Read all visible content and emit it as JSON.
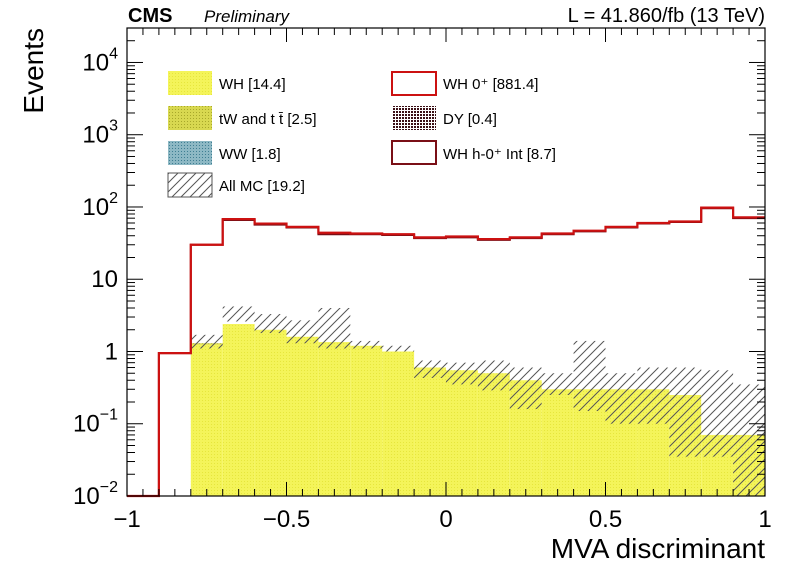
{
  "header": {
    "experiment": "CMS",
    "status": "Preliminary",
    "lumi": "L = 41.860/fb (13 TeV)"
  },
  "chart_data": {
    "type": "bar",
    "xlabel": "MVA discriminant",
    "ylabel": "Events",
    "xlim": [
      -1,
      1
    ],
    "ylim": [
      0.01,
      30000
    ],
    "yscale": "log",
    "x_ticks": [
      {
        "value": -1,
        "label": "−1"
      },
      {
        "value": -0.5,
        "label": "−0.5"
      },
      {
        "value": 0,
        "label": "0"
      },
      {
        "value": 0.5,
        "label": "0.5"
      },
      {
        "value": 1,
        "label": "1"
      }
    ],
    "y_ticks": [
      {
        "value": 0.01,
        "base": "10",
        "exp": "−2"
      },
      {
        "value": 0.1,
        "base": "10",
        "exp": "−1"
      },
      {
        "value": 1,
        "base": "1",
        "exp": ""
      },
      {
        "value": 10,
        "base": "10",
        "exp": ""
      },
      {
        "value": 100,
        "base": "10",
        "exp": "2"
      },
      {
        "value": 1000,
        "base": "10",
        "exp": "3"
      },
      {
        "value": 10000,
        "base": "10",
        "exp": "4"
      }
    ],
    "bin_edges": [
      -1.0,
      -0.9,
      -0.8,
      -0.7,
      -0.6,
      -0.5,
      -0.4,
      -0.3,
      -0.2,
      -0.1,
      0.0,
      0.1,
      0.2,
      0.3,
      0.4,
      0.5,
      0.6,
      0.7,
      0.8,
      0.9,
      1.0
    ],
    "series": [
      {
        "name": "WH [14.4]",
        "kind": "stack",
        "color": "#f4f45a",
        "values": [
          0,
          0,
          1.25,
          2.4,
          2.0,
          1.6,
          1.35,
          1.2,
          1.0,
          0.6,
          0.55,
          0.5,
          0.4,
          0.3,
          0.3,
          0.3,
          0.3,
          0.25,
          0.07,
          0.07
        ]
      },
      {
        "name": "tW and t t̄ [2.5]",
        "kind": "stack",
        "color": "#c9c93a",
        "values": [
          0,
          0,
          0.05,
          0,
          0,
          0,
          0,
          0,
          0,
          0,
          0,
          0,
          0,
          0,
          0,
          0,
          0,
          0,
          0,
          0
        ]
      },
      {
        "name": "WW [1.8]",
        "kind": "stack",
        "color": "#6aa3b4",
        "values": [
          0,
          0,
          0,
          0,
          0,
          0,
          0,
          0,
          0,
          0,
          0,
          0,
          0,
          0,
          0,
          0,
          0,
          0,
          0,
          0
        ]
      },
      {
        "name": "DY [0.4]",
        "kind": "stack",
        "color": "#6b1f2a",
        "values": [
          0,
          0,
          0,
          0,
          0,
          0,
          0,
          0,
          0,
          0,
          0,
          0,
          0,
          0,
          0,
          0,
          0,
          0,
          0,
          0
        ]
      },
      {
        "name": "WH 0⁺ [881.4]",
        "kind": "line",
        "color": "#cc1111",
        "values": [
          0.01,
          0.95,
          30,
          68,
          59,
          53,
          44,
          43,
          42,
          38,
          39,
          36,
          38,
          43,
          47,
          53,
          60,
          63,
          98,
          72
        ]
      },
      {
        "name": "WH h-0⁺ Int [8.7]",
        "kind": "line",
        "color": "#7a0f16",
        "values": [
          0.01,
          0.95,
          30,
          66,
          57,
          52,
          42,
          42,
          41,
          37,
          38,
          35,
          37,
          42,
          46,
          52,
          59,
          62,
          96,
          70
        ]
      }
    ],
    "all_mc": {
      "name": "All MC [19.2]",
      "low": [
        0,
        0.1,
        1.1,
        2.6,
        1.8,
        1.3,
        1.1,
        1.1,
        1.0,
        0.43,
        0.35,
        0.29,
        0.16,
        0.25,
        0.15,
        0.1,
        0.1,
        0.035,
        0.035,
        0.01
      ],
      "high": [
        0,
        0.1,
        1.7,
        4.2,
        3.3,
        2.7,
        4.0,
        1.4,
        1.2,
        0.75,
        0.7,
        0.75,
        0.6,
        0.5,
        1.4,
        0.5,
        0.6,
        0.6,
        0.55,
        0.35
      ]
    },
    "legend_placement": "top-left"
  }
}
